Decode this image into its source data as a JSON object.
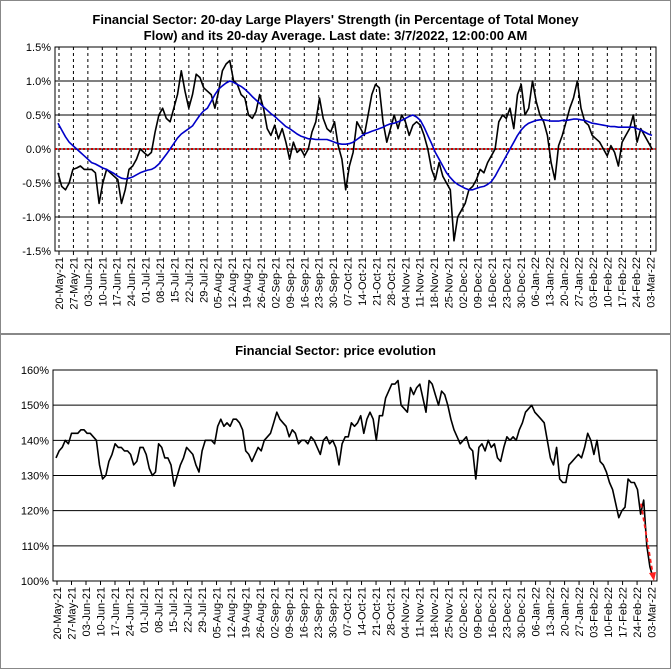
{
  "charts": [
    {
      "title_line1": "Financial Sector: 20-day Large Players' Strength (in Percentage of Total Money",
      "title_line2": "Flow) and its 20-day Average. Last date: 3/7/2022, 12:00:00 AM"
    },
    {
      "title": "Financial Sector: price evolution"
    }
  ],
  "chart_data": [
    {
      "type": "line",
      "title": "Financial Sector: 20-day Large Players' Strength (in Percentage of Total Money Flow) and its 20-day Average. Last date: 3/7/2022, 12:00:00 AM",
      "x_tick_labels": [
        "20-May-21",
        "27-May-21",
        "03-Jun-21",
        "10-Jun-21",
        "17-Jun-21",
        "24-Jun-21",
        "01-Jul-21",
        "08-Jul-21",
        "15-Jul-21",
        "22-Jul-21",
        "29-Jul-21",
        "05-Aug-21",
        "12-Aug-21",
        "19-Aug-21",
        "26-Aug-21",
        "02-Sep-21",
        "09-Sep-21",
        "16-Sep-21",
        "23-Sep-21",
        "30-Sep-21",
        "07-Oct-21",
        "14-Oct-21",
        "21-Oct-21",
        "28-Oct-21",
        "04-Nov-21",
        "11-Nov-21",
        "18-Nov-21",
        "25-Nov-21",
        "02-Dec-21",
        "09-Dec-21",
        "16-Dec-21",
        "23-Dec-21",
        "30-Dec-21",
        "06-Jan-22",
        "13-Jan-22",
        "20-Jan-22",
        "27-Jan-22",
        "03-Feb-22",
        "10-Feb-22",
        "17-Feb-22",
        "24-Feb-22",
        "03-Mar-22"
      ],
      "y_tick_labels": [
        "1.5%",
        "1.0%",
        "0.5%",
        "0.0%",
        "-0.5%",
        "-1.0%",
        "-1.5%"
      ],
      "ylim": [
        -1.5,
        1.5
      ],
      "y_unit": "%",
      "grid": "vertical-dashed",
      "series": [
        {
          "color": "#000000",
          "values": [
            -0.35,
            -0.55,
            -0.6,
            -0.5,
            -0.3,
            -0.28,
            -0.25,
            -0.3,
            -0.3,
            -0.3,
            -0.35,
            -0.8,
            -0.5,
            -0.3,
            -0.35,
            -0.4,
            -0.45,
            -0.8,
            -0.6,
            -0.3,
            -0.25,
            -0.15,
            0.0,
            -0.05,
            -0.1,
            -0.05,
            0.25,
            0.5,
            0.6,
            0.45,
            0.4,
            0.6,
            0.8,
            1.15,
            0.85,
            0.6,
            0.8,
            1.1,
            1.05,
            0.9,
            0.85,
            0.8,
            0.6,
            0.85,
            1.15,
            1.25,
            1.3,
            1.0,
            0.95,
            0.8,
            0.75,
            0.5,
            0.45,
            0.55,
            0.8,
            0.6,
            0.3,
            0.2,
            0.35,
            0.15,
            0.3,
            0.1,
            -0.15,
            0.1,
            -0.05,
            0.0,
            -0.1,
            0.0,
            0.25,
            0.4,
            0.75,
            0.45,
            0.3,
            0.25,
            0.4,
            0.05,
            -0.15,
            -0.6,
            -0.25,
            -0.05,
            0.4,
            0.3,
            0.2,
            0.5,
            0.8,
            0.95,
            0.9,
            0.4,
            0.1,
            0.3,
            0.5,
            0.3,
            0.5,
            0.4,
            0.2,
            0.35,
            0.4,
            0.35,
            0.2,
            0.0,
            -0.3,
            -0.45,
            -0.2,
            -0.4,
            -0.5,
            -0.6,
            -1.35,
            -1.0,
            -0.9,
            -0.8,
            -0.6,
            -0.55,
            -0.45,
            -0.3,
            -0.35,
            -0.2,
            -0.1,
            0.0,
            0.4,
            0.5,
            0.45,
            0.6,
            0.3,
            0.8,
            0.95,
            0.5,
            0.6,
            1.0,
            0.7,
            0.5,
            0.4,
            0.2,
            -0.2,
            -0.45,
            0.05,
            0.2,
            0.4,
            0.6,
            0.75,
            1.0,
            0.6,
            0.4,
            0.35,
            0.2,
            0.15,
            0.1,
            0.0,
            -0.1,
            0.05,
            -0.05,
            -0.25,
            0.1,
            0.2,
            0.3,
            0.5,
            0.1,
            0.3,
            0.2,
            0.1,
            0.0
          ]
        },
        {
          "color": "#0000c8",
          "values": [
            0.38,
            0.28,
            0.18,
            0.1,
            0.05,
            0.0,
            -0.05,
            -0.1,
            -0.15,
            -0.2,
            -0.22,
            -0.25,
            -0.28,
            -0.3,
            -0.33,
            -0.36,
            -0.4,
            -0.43,
            -0.44,
            -0.43,
            -0.41,
            -0.38,
            -0.35,
            -0.33,
            -0.31,
            -0.3,
            -0.27,
            -0.22,
            -0.15,
            -0.08,
            0.0,
            0.08,
            0.16,
            0.22,
            0.26,
            0.3,
            0.34,
            0.42,
            0.5,
            0.56,
            0.6,
            0.7,
            0.8,
            0.88,
            0.93,
            0.97,
            1.0,
            0.98,
            0.95,
            0.92,
            0.88,
            0.83,
            0.77,
            0.72,
            0.67,
            0.62,
            0.57,
            0.52,
            0.48,
            0.43,
            0.38,
            0.33,
            0.3,
            0.26,
            0.22,
            0.19,
            0.17,
            0.15,
            0.15,
            0.14,
            0.14,
            0.14,
            0.14,
            0.12,
            0.1,
            0.08,
            0.07,
            0.07,
            0.08,
            0.1,
            0.14,
            0.18,
            0.22,
            0.24,
            0.26,
            0.28,
            0.3,
            0.32,
            0.35,
            0.37,
            0.38,
            0.4,
            0.42,
            0.45,
            0.48,
            0.5,
            0.47,
            0.42,
            0.32,
            0.2,
            0.08,
            -0.05,
            -0.15,
            -0.25,
            -0.35,
            -0.42,
            -0.48,
            -0.52,
            -0.55,
            -0.58,
            -0.6,
            -0.6,
            -0.58,
            -0.56,
            -0.55,
            -0.52,
            -0.48,
            -0.4,
            -0.3,
            -0.2,
            -0.1,
            0.0,
            0.1,
            0.2,
            0.28,
            0.34,
            0.38,
            0.4,
            0.42,
            0.43,
            0.43,
            0.42,
            0.41,
            0.41,
            0.41,
            0.42,
            0.42,
            0.43,
            0.44,
            0.44,
            0.43,
            0.42,
            0.4,
            0.38,
            0.37,
            0.36,
            0.35,
            0.34,
            0.33,
            0.33,
            0.32,
            0.32,
            0.32,
            0.32,
            0.32,
            0.3,
            0.28,
            0.25,
            0.22,
            0.2
          ]
        }
      ],
      "reference_line": {
        "y": 0.0,
        "color": "#cc0000",
        "style": "dotted"
      }
    },
    {
      "type": "line",
      "title": "Financial Sector: price evolution",
      "x_tick_labels": [
        "20-May-21",
        "27-May-21",
        "03-Jun-21",
        "10-Jun-21",
        "17-Jun-21",
        "24-Jun-21",
        "01-Jul-21",
        "08-Jul-21",
        "15-Jul-21",
        "22-Jul-21",
        "29-Jul-21",
        "05-Aug-21",
        "12-Aug-21",
        "19-Aug-21",
        "26-Aug-21",
        "02-Sep-21",
        "09-Sep-21",
        "16-Sep-21",
        "23-Sep-21",
        "30-Sep-21",
        "07-Oct-21",
        "14-Oct-21",
        "21-Oct-21",
        "28-Oct-21",
        "04-Nov-21",
        "11-Nov-21",
        "18-Nov-21",
        "25-Nov-21",
        "02-Dec-21",
        "09-Dec-21",
        "16-Dec-21",
        "23-Dec-21",
        "30-Dec-21",
        "06-Jan-22",
        "13-Jan-22",
        "20-Jan-22",
        "27-Jan-22",
        "03-Feb-22",
        "10-Feb-22",
        "17-Feb-22",
        "24-Feb-22",
        "03-Mar-22"
      ],
      "y_tick_labels": [
        "160%",
        "150%",
        "140%",
        "130%",
        "120%",
        "110%",
        "100%"
      ],
      "ylim": [
        100,
        160
      ],
      "y_unit": "%",
      "grid": "horizontal-solid",
      "series": [
        {
          "color": "#000000",
          "values": [
            135,
            137,
            138,
            140,
            139,
            142,
            142,
            142,
            143,
            143,
            142,
            142,
            141,
            140,
            133,
            129,
            130,
            134,
            136,
            139,
            138,
            138,
            137,
            137,
            136,
            133,
            134,
            138,
            138,
            136,
            132,
            130,
            131,
            139,
            138,
            135,
            135,
            133,
            127,
            130,
            133,
            135,
            138,
            137,
            136,
            133,
            131,
            137,
            140,
            140,
            140,
            139,
            144,
            146,
            144,
            145,
            144,
            146,
            146,
            145,
            143,
            137,
            136,
            134,
            136,
            138,
            137,
            140,
            141,
            142,
            145,
            148,
            146,
            145,
            144,
            141,
            143,
            142,
            139,
            140,
            140,
            139,
            141,
            140,
            138,
            136,
            140,
            141,
            139,
            140,
            138,
            133,
            139,
            141,
            141,
            145,
            144,
            145,
            147,
            142,
            146,
            148,
            146,
            140,
            147,
            147,
            152,
            154,
            156,
            156,
            157,
            150,
            149,
            148,
            155,
            153,
            155,
            156,
            152,
            148,
            157,
            156,
            153,
            150,
            154,
            153,
            150,
            146,
            143,
            141,
            139,
            140,
            141,
            138,
            137,
            129,
            138,
            139,
            137,
            140,
            138,
            139,
            135,
            134,
            138,
            141,
            140,
            141,
            140,
            143,
            145,
            148,
            149,
            150,
            148,
            147,
            146,
            145,
            140,
            135,
            133,
            138,
            129,
            128,
            128,
            133,
            134,
            135,
            136,
            135,
            138,
            142,
            140,
            136,
            140,
            134,
            133,
            131,
            128,
            126,
            122,
            118,
            120,
            121,
            129,
            128,
            128,
            126,
            119,
            123,
            110,
            104,
            101
          ],
          "trend_arrow": {
            "from_value": 122,
            "to_value": 100,
            "color": "#ff2020"
          }
        }
      ]
    }
  ]
}
